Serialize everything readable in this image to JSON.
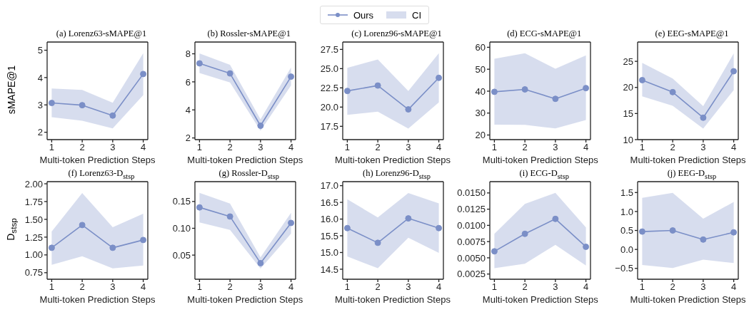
{
  "chart_data": [
    {
      "type": "line",
      "title": "(a) Lorenz63-sMAPE@1",
      "xlabel": "Multi-token Prediction Steps",
      "ylabel": "sMAPE@1",
      "x": [
        1,
        2,
        3,
        4
      ],
      "xlim": [
        0.85,
        4.15
      ],
      "xticks": [
        1,
        2,
        3,
        4
      ],
      "ylim": [
        1.73,
        5.3
      ],
      "yticks": [
        2,
        3,
        4,
        5
      ],
      "marker": "circle",
      "legend": "top",
      "annotations": [
        "CI"
      ],
      "series": [
        {
          "name": "Ours",
          "color": "#7b8fc7",
          "values": [
            3.07,
            2.99,
            2.61,
            4.13
          ],
          "lower": [
            2.55,
            2.42,
            2.14,
            3.36
          ],
          "upper": [
            3.6,
            3.55,
            3.08,
            4.89
          ]
        }
      ]
    },
    {
      "type": "line",
      "title": "(b) Rossler-sMAPE@1",
      "xlabel": "Multi-token Prediction Steps",
      "x": [
        1,
        2,
        3,
        4
      ],
      "xlim": [
        0.85,
        4.15
      ],
      "xticks": [
        1,
        2,
        3,
        4
      ],
      "ylim": [
        1.88,
        8.84
      ],
      "yticks": [
        2,
        4,
        6,
        8
      ],
      "marker": "circle",
      "series": [
        {
          "color": "#7b8fc7",
          "values": [
            7.32,
            6.6,
            2.87,
            6.37
          ],
          "lower": [
            6.63,
            5.96,
            2.52,
            5.74
          ],
          "upper": [
            8.03,
            7.22,
            3.33,
            7.02
          ]
        }
      ]
    },
    {
      "type": "line",
      "title": "(c) Lorenz96-sMAPE@1",
      "xlabel": "Multi-token Prediction Steps",
      "x": [
        1,
        2,
        3,
        4
      ],
      "xlim": [
        0.85,
        4.15
      ],
      "xticks": [
        1,
        2,
        3,
        4
      ],
      "ylim": [
        15.77,
        28.46
      ],
      "yticks": [
        {
          "value": 17.5,
          "label": "17.5"
        },
        {
          "value": 20,
          "label": "20.0"
        },
        {
          "value": 22.5,
          "label": "22.5"
        },
        {
          "value": 25,
          "label": "25.0"
        },
        {
          "value": 27.5,
          "label": "27.5"
        }
      ],
      "marker": "circle",
      "series": [
        {
          "color": "#7b8fc7",
          "values": [
            22.1,
            22.8,
            19.7,
            23.8
          ],
          "lower": [
            19.0,
            19.4,
            17.2,
            20.6
          ],
          "upper": [
            25.1,
            26.2,
            22.1,
            27.0
          ]
        }
      ]
    },
    {
      "type": "line",
      "title": "(d) ECG-sMAPE@1",
      "xlabel": "Multi-token Prediction Steps",
      "x": [
        1,
        2,
        3,
        4
      ],
      "xlim": [
        0.85,
        4.15
      ],
      "xticks": [
        1,
        2,
        3,
        4
      ],
      "ylim": [
        17.9,
        62.4
      ],
      "yticks": [
        20,
        30,
        40,
        50,
        60
      ],
      "marker": "circle",
      "series": [
        {
          "color": "#7b8fc7",
          "values": [
            39.7,
            40.8,
            36.5,
            41.4
          ],
          "lower": [
            24.7,
            24.6,
            23.0,
            26.8
          ],
          "upper": [
            54.8,
            57.3,
            50.2,
            56.3
          ]
        }
      ]
    },
    {
      "type": "line",
      "title": "(e) EEG-sMAPE@1",
      "xlabel": "Multi-token Prediction Steps",
      "x": [
        1,
        2,
        3,
        4
      ],
      "xlim": [
        0.85,
        4.15
      ],
      "xticks": [
        1,
        2,
        3,
        4
      ],
      "ylim": [
        10,
        28.7
      ],
      "yticks": [
        10,
        15,
        20,
        25
      ],
      "marker": "circle",
      "series": [
        {
          "color": "#7b8fc7",
          "values": [
            21.4,
            19.1,
            14.2,
            23.1
          ],
          "lower": [
            18.3,
            16.5,
            12.1,
            19.5
          ],
          "upper": [
            24.7,
            21.7,
            16.4,
            26.5
          ]
        }
      ]
    },
    {
      "type": "line",
      "title": "(f) Lorenz63-D$_{stsp}$",
      "xlabel": "Multi-token Prediction Steps",
      "ylabel": "D$_{stsp}$",
      "x": [
        1,
        2,
        3,
        4
      ],
      "xlim": [
        0.85,
        4.15
      ],
      "xticks": [
        1,
        2,
        3,
        4
      ],
      "ylim": [
        0.658,
        2.03
      ],
      "yticks": [
        {
          "value": 0.75,
          "label": "0.75"
        },
        {
          "value": 1,
          "label": "1.00"
        },
        {
          "value": 1.25,
          "label": "1.25"
        },
        {
          "value": 1.5,
          "label": "1.50"
        },
        {
          "value": 1.75,
          "label": "1.75"
        },
        {
          "value": 2,
          "label": "2.00"
        }
      ],
      "marker": "circle",
      "series": [
        {
          "color": "#7b8fc7",
          "values": [
            1.1,
            1.42,
            1.1,
            1.21
          ],
          "lower": [
            0.86,
            0.98,
            0.81,
            0.85
          ],
          "upper": [
            1.33,
            1.87,
            1.39,
            1.58
          ]
        }
      ]
    },
    {
      "type": "line",
      "title": "(g) Rossler-D$_{stsp}$",
      "xlabel": "Multi-token Prediction Steps",
      "x": [
        1,
        2,
        3,
        4
      ],
      "xlim": [
        0.85,
        4.15
      ],
      "xticks": [
        1,
        2,
        3,
        4
      ],
      "ylim": [
        0.005,
        0.187
      ],
      "yticks": [
        0.05,
        {
          "value": 0.1,
          "label": "0.10"
        },
        0.15
      ],
      "marker": "circle",
      "series": [
        {
          "color": "#7b8fc7",
          "values": [
            0.139,
            0.122,
            0.035,
            0.11
          ],
          "lower": [
            0.111,
            0.097,
            0.025,
            0.09
          ],
          "upper": [
            0.166,
            0.146,
            0.046,
            0.129
          ]
        }
      ]
    },
    {
      "type": "line",
      "title": "(h) Lorenz96-D$_{stsp}$",
      "xlabel": "Multi-token Prediction Steps",
      "x": [
        1,
        2,
        3,
        4
      ],
      "xlim": [
        0.85,
        4.15
      ],
      "xticks": [
        1,
        2,
        3,
        4
      ],
      "ylim": [
        14.2,
        17.12
      ],
      "yticks": [
        14.5,
        {
          "value": 15,
          "label": "15.0"
        },
        15.5,
        {
          "value": 16,
          "label": "16.0"
        },
        16.5,
        {
          "value": 17,
          "label": "17.0"
        }
      ],
      "marker": "circle",
      "series": [
        {
          "color": "#7b8fc7",
          "values": [
            15.73,
            15.29,
            16.02,
            15.73
          ],
          "lower": [
            14.88,
            14.53,
            15.44,
            14.99
          ],
          "upper": [
            16.59,
            16.05,
            16.78,
            16.47
          ]
        }
      ]
    },
    {
      "type": "line",
      "title": "(i) ECG-D$_{stsp}$",
      "xlabel": "Multi-token Prediction Steps",
      "x": [
        1,
        2,
        3,
        4
      ],
      "xlim": [
        0.85,
        4.15
      ],
      "xticks": [
        1,
        2,
        3,
        4
      ],
      "ylim": [
        0.0017,
        0.01674
      ],
      "yticks": [
        0.0025,
        {
          "value": 0.005,
          "label": "0.0050"
        },
        0.0075,
        {
          "value": 0.01,
          "label": "0.0100"
        },
        0.0125,
        {
          "value": 0.015,
          "label": "0.0150"
        }
      ],
      "marker": "circle",
      "series": [
        {
          "color": "#7b8fc7",
          "values": [
            0.006,
            0.0087,
            0.011,
            0.0067
          ],
          "lower": [
            0.0034,
            0.0041,
            0.007,
            0.0038
          ],
          "upper": [
            0.0087,
            0.0133,
            0.015,
            0.0097
          ]
        }
      ]
    },
    {
      "type": "line",
      "title": "(j) EEG-D$_{stsp}$",
      "xlabel": "Multi-token Prediction Steps",
      "x": [
        1,
        2,
        3,
        4
      ],
      "xlim": [
        0.85,
        4.15
      ],
      "xticks": [
        1,
        2,
        3,
        4
      ],
      "ylim": [
        -0.786,
        1.787
      ],
      "yticks": [
        {
          "value": -0.5,
          "label": "−0.5"
        },
        {
          "value": 0,
          "label": "0.0"
        },
        0.5,
        {
          "value": 1,
          "label": "1.0"
        },
        1.5
      ],
      "marker": "circle",
      "series": [
        {
          "color": "#7b8fc7",
          "values": [
            0.47,
            0.5,
            0.26,
            0.45
          ],
          "lower": [
            -0.41,
            -0.49,
            -0.27,
            -0.36
          ],
          "upper": [
            1.36,
            1.49,
            0.81,
            1.25
          ]
        }
      ]
    }
  ]
}
